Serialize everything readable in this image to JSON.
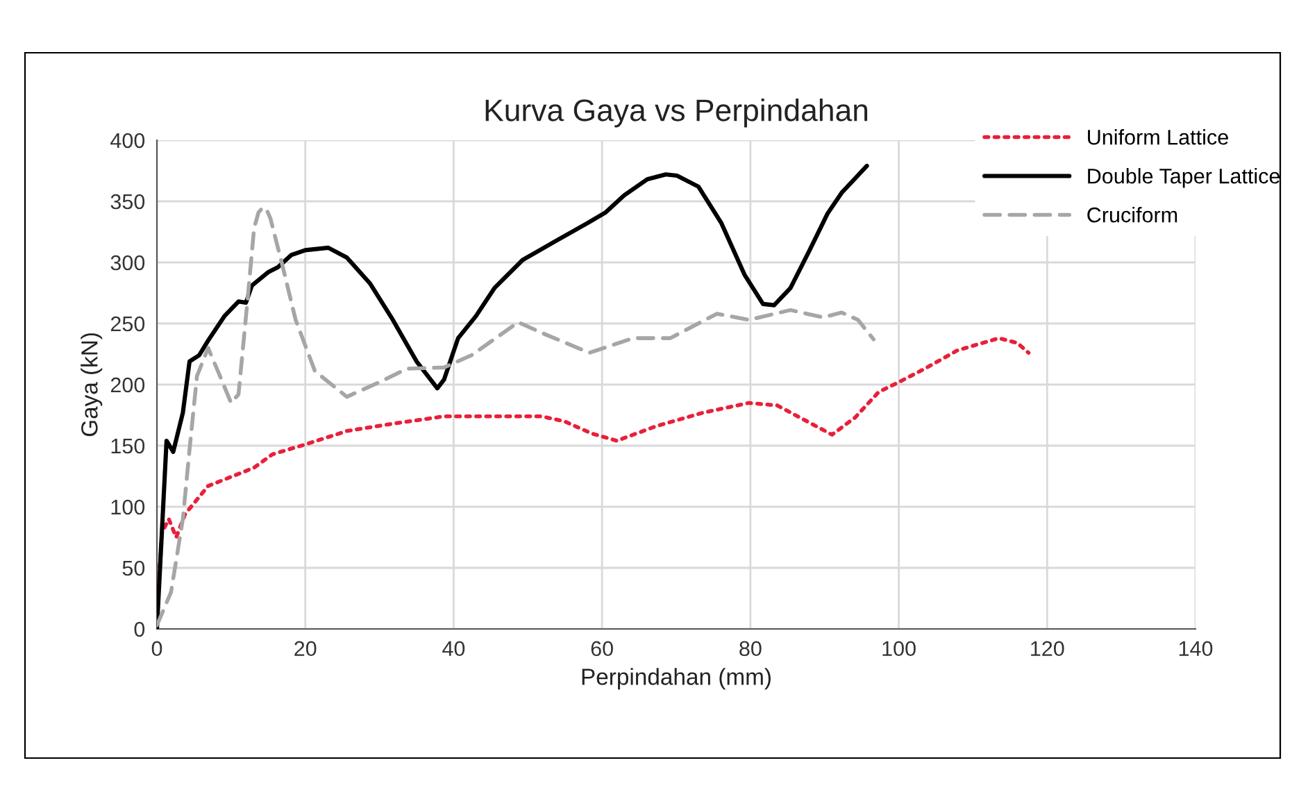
{
  "chart_data": {
    "type": "line",
    "title": "Kurva Gaya vs Perpindahan",
    "xlabel": "Perpindahan (mm)",
    "ylabel": "Gaya (kN)",
    "xlim": [
      0,
      140
    ],
    "xticks": [
      0,
      20,
      40,
      60,
      80,
      100,
      120,
      140
    ],
    "ylim": [
      0,
      400
    ],
    "yticks": [
      0,
      50,
      100,
      150,
      200,
      250,
      300,
      350,
      400
    ],
    "grid": true,
    "legend": "top right",
    "marker": "none",
    "series": [
      {
        "name": "Uniform Lattice",
        "color": "#e8203a",
        "line_style": "dotted",
        "x": [
          0,
          0.7,
          1.6,
          2.6,
          3.8,
          6.9,
          13.1,
          15.6,
          20,
          25.6,
          31.8,
          38.7,
          46.2,
          51.8,
          54.9,
          58.6,
          62,
          67.3,
          73.6,
          79.8,
          83.6,
          87.3,
          91,
          94.1,
          97.3,
          100,
          103.5,
          107.9,
          113.5,
          116,
          117.5
        ],
        "values": [
          18,
          79,
          90,
          75,
          94,
          117,
          132,
          143,
          151,
          162,
          168,
          174,
          174,
          174,
          170,
          160,
          154,
          166,
          177,
          185,
          183,
          171,
          159,
          173,
          194,
          202,
          213,
          228,
          238,
          234,
          226
        ]
      },
      {
        "name": "Double Taper Lattice",
        "color": "#000000",
        "line_style": "solid",
        "x": [
          0,
          1.3,
          2.2,
          3.5,
          4.4,
          5.7,
          6.9,
          9.1,
          11,
          12,
          12.8,
          15,
          16.3,
          18.1,
          20,
          23.1,
          25.6,
          28.7,
          31.8,
          35,
          37.8,
          38.7,
          40.6,
          43,
          45.5,
          49.3,
          53.6,
          58,
          60.5,
          63,
          66.1,
          68.6,
          70.1,
          73,
          76.1,
          79.2,
          81.7,
          83.2,
          85.4,
          87.9,
          90.4,
          92.3,
          95.7
        ],
        "values": [
          0,
          154,
          145,
          177,
          219,
          224,
          236,
          256,
          268,
          267,
          281,
          292,
          296,
          306,
          310,
          312,
          304,
          283,
          253,
          219,
          197,
          204,
          238,
          256,
          279,
          302,
          317,
          332,
          341,
          355,
          368,
          372,
          371,
          362,
          332,
          290,
          266,
          265,
          279,
          309,
          340,
          357,
          379
        ]
      },
      {
        "name": "Cruciform",
        "color": "#a6a6a6",
        "line_style": "dashed",
        "x": [
          0,
          1.9,
          3.5,
          4.4,
          5.4,
          6.9,
          8.5,
          10,
          11,
          12.2,
          13.1,
          13.7,
          14.3,
          14.8,
          15.3,
          16.9,
          18.7,
          21.3,
          25.6,
          30,
          33.7,
          38.7,
          42.4,
          48.7,
          52.4,
          58.3,
          64.2,
          69.2,
          75.5,
          79.8,
          85.4,
          89.8,
          92.3,
          94.5,
          96.6
        ],
        "values": [
          3,
          30,
          90,
          147,
          207,
          230,
          207,
          185,
          192,
          268,
          328,
          341,
          345,
          343,
          336,
          298,
          253,
          211,
          190,
          202,
          213,
          214,
          224,
          251,
          241,
          226,
          238,
          238,
          258,
          253,
          261,
          255,
          259,
          253,
          237
        ]
      }
    ]
  }
}
